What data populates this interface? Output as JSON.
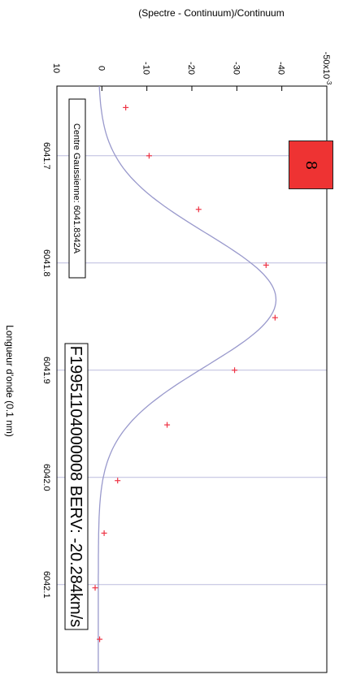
{
  "chart_data": {
    "type": "scatter",
    "orientation": "rotated-90-clockwise",
    "title": "(Spectre - Continuum)/Continuum",
    "xlabel": "Longueur d'onde (0.1 nm)",
    "ylabel": "",
    "x_ticks": [
      "6041.7",
      "6041.8",
      "6041.9",
      "6042.0",
      "6042.1"
    ],
    "y_ticks": [
      "-50x10",
      "-40",
      "-30",
      "-20",
      "-10",
      "0",
      "10"
    ],
    "y_tick_exponent": "-3",
    "xlim": [
      6041.635,
      6042.182
    ],
    "ylim": [
      -0.05,
      0.01
    ],
    "grid": "vertical-lines-at-x-ticks",
    "series": [
      {
        "kind": "points",
        "marker": "+",
        "color": "#ee3344",
        "x": [
          6041.655,
          6041.7,
          6041.75,
          6041.802,
          6041.851,
          6041.9,
          6041.951,
          6042.003,
          6042.052,
          6042.103,
          6042.151
        ],
        "y": [
          -0.0053,
          -0.0105,
          -0.0215,
          -0.0365,
          -0.0385,
          -0.0295,
          -0.0145,
          -0.0035,
          -0.0005,
          0.0015,
          0.0005
        ]
      },
      {
        "kind": "fit-curve",
        "color": "#9999cc",
        "model": "gaussian",
        "center": 6041.8342,
        "amplitude": -0.0395,
        "sigma": 0.062,
        "offset": 0.0008
      }
    ],
    "annotations": [
      "Centre Gaussienne: 6041.8342A",
      "F19951104000008 BERV: -20.284km/s"
    ]
  },
  "badge": {
    "label": "8",
    "color": "#ee3333"
  }
}
